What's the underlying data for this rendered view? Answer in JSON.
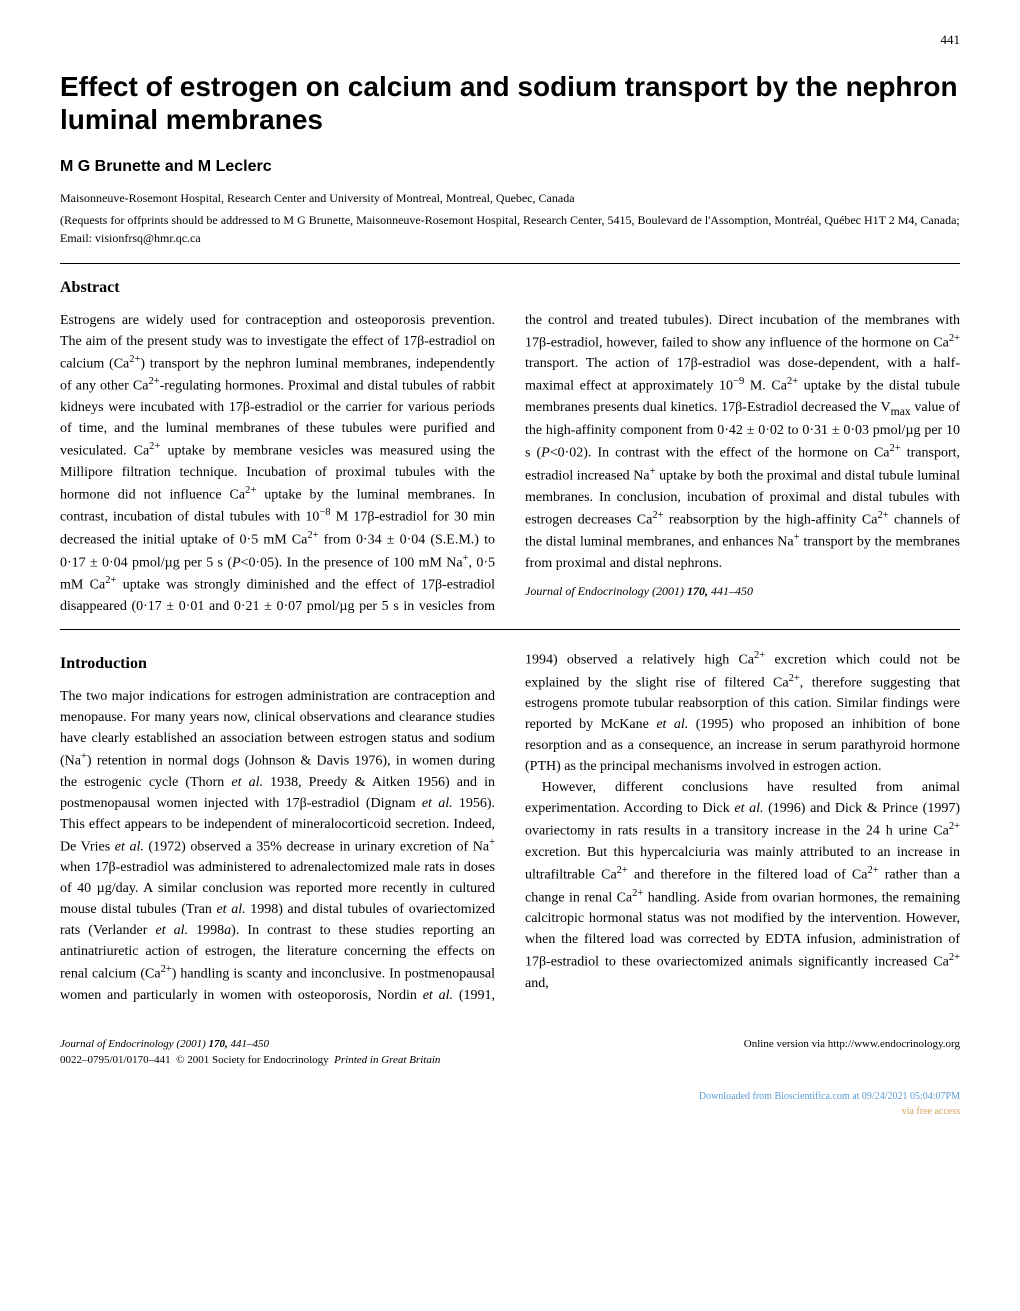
{
  "page_number": "441",
  "title": "Effect of estrogen on calcium and sodium transport by the nephron luminal membranes",
  "authors_html": "<b>M G Brunette</b> and <b>M Leclerc</b>",
  "affiliation": "Maisonneuve-Rosemont Hospital, Research Center and University of Montreal, Montreal, Quebec, Canada",
  "correspondence": "(Requests for offprints should be addressed to M G Brunette, Maisonneuve-Rosemont Hospital, Research Center, 5415, Boulevard de l'Assomption, Montréal, Québec H1T 2 M4, Canada; Email: visionfrsq@hmr.qc.ca",
  "abstract_heading": "Abstract",
  "abstract_body_html": "Estrogens are widely used for contraception and osteoporosis prevention. The aim of the present study was to investigate the effect of 17β-estradiol on calcium (Ca<sup>2+</sup>) transport by the nephron luminal membranes, independently of any other Ca<sup>2+</sup>-regulating hormones. Proximal and distal tubules of rabbit kidneys were incubated with 17β-estradiol or the carrier for various periods of time, and the luminal membranes of these tubules were purified and vesiculated. Ca<sup>2+</sup> uptake by membrane vesicles was measured using the Millipore filtration technique. Incubation of proximal tubules with the hormone did not influence Ca<sup>2+</sup> uptake by the luminal membranes. In contrast, incubation of distal tubules with 10<sup>−8</sup> M 17β-estradiol for 30 min decreased the initial uptake of 0·5 mM Ca<sup>2+</sup> from 0·34 ± 0·04 (S.E.M.) to 0·17 ± 0·04 pmol/µg per 5 s (<i>P</i>&lt;0·05). In the presence of 100 mM Na<sup>+</sup>, 0·5 mM Ca<sup>2+</sup> uptake was strongly diminished and the effect of 17β-estradiol disappeared (0·17 ± 0·01 and 0·21 ± 0·07 pmol/µg per 5 s in vesicles from the control and treated tubules). Direct incubation of the membranes with 17β-estradiol, however, failed to show any influence of the hormone on Ca<sup>2+</sup> transport. The action of 17β-estradiol was dose-dependent, with a half-maximal effect at approximately 10<sup>−9</sup> M. Ca<sup>2+</sup> uptake by the distal tubule membranes presents dual kinetics. 17β-Estradiol decreased the V<sub>max</sub> value of the high-affinity component from 0·42 ± 0·02 to 0·31 ± 0·03 pmol/µg per 10 s (<i>P</i>&lt;0·02). In contrast with the effect of the hormone on Ca<sup>2+</sup> transport, estradiol increased Na<sup>+</sup> uptake by both the proximal and distal tubule luminal membranes. In conclusion, incubation of proximal and distal tubules with estrogen decreases Ca<sup>2+</sup> reabsorption by the high-affinity Ca<sup>2+</sup> channels of the distal luminal membranes, and enhances Na<sup>+</sup> transport by the membranes from proximal and distal nephrons.",
  "abstract_citation_html": "<i>Journal of Endocrinology</i> (2001) <b>170,</b> 441–450",
  "intro_heading": "Introduction",
  "intro_p1_html": "The two major indications for estrogen administration are contraception and menopause. For many years now, clinical observations and clearance studies have clearly established an association between estrogen status and sodium (Na<sup>+</sup>) retention in normal dogs (Johnson &amp; Davis 1976), in women during the estrogenic cycle (Thorn <i>et al.</i> 1938, Preedy &amp; Aitken 1956) and in postmenopausal women injected with 17β-estradiol (Dignam <i>et al.</i> 1956). This effect appears to be independent of mineralocorticoid secretion. Indeed, De Vries <i>et al.</i> (1972) observed a 35% decrease in urinary excretion of Na<sup>+</sup> when 17β-estradiol was administered to adrenalectomized male rats in doses of 40 µg/day. A similar conclusion was reported more recently in cultured mouse distal tubules (Tran <i>et al.</i> 1998) and distal tubules of ovariectomized rats (Verlander <i>et al.</i> 1998<i>a</i>). In contrast to these studies reporting an antinatriuretic action of estrogen, the literature concerning the effects on renal calcium (Ca<sup>2+</sup>) handling is scanty and inconclusive. In postmenopausal women and particularly in women with osteoporosis, Nordin <i>et al.</i> (1991, 1994) observed a relatively high Ca<sup>2+</sup> excretion which could not be explained by the slight rise of filtered Ca<sup>2+</sup>, therefore suggesting that estrogens promote tubular reabsorption of this cation. Similar findings were reported by McKane <i>et al.</i> (1995) who proposed an inhibition of bone resorption and as a consequence, an increase in serum parathyroid hormone (PTH) as the principal mechanisms involved in estrogen action.",
  "intro_p2_html": "However, different conclusions have resulted from animal experimentation. According to Dick <i>et al.</i> (1996) and Dick &amp; Prince (1997) ovariectomy in rats results in a transitory increase in the 24 h urine Ca<sup>2+</sup> excretion. But this hypercalciuria was mainly attributed to an increase in ultrafiltrable Ca<sup>2+</sup> and therefore in the filtered load of Ca<sup>2+</sup> rather than a change in renal Ca<sup>2+</sup> handling. Aside from ovarian hormones, the remaining calcitropic hormonal status was not modified by the intervention. However, when the filtered load was corrected by EDTA infusion, administration of 17β-estradiol to these ovariectomized animals significantly increased Ca<sup>2+</sup> and,",
  "footer_left_line1_html": "<i>Journal of Endocrinology</i> (2001) <b>170,</b> 441–450",
  "footer_left_line2_html": "0022–0795/01/0170–441&nbsp;&nbsp;© 2001 Society for Endocrinology&nbsp;&nbsp;<i>Printed in Great Britain</i>",
  "footer_right": "Online version via http://www.endocrinology.org",
  "download_line1": "Downloaded from Bioscientifica.com at 09/24/2021 05:04:07PM",
  "download_line2": "via free access"
}
